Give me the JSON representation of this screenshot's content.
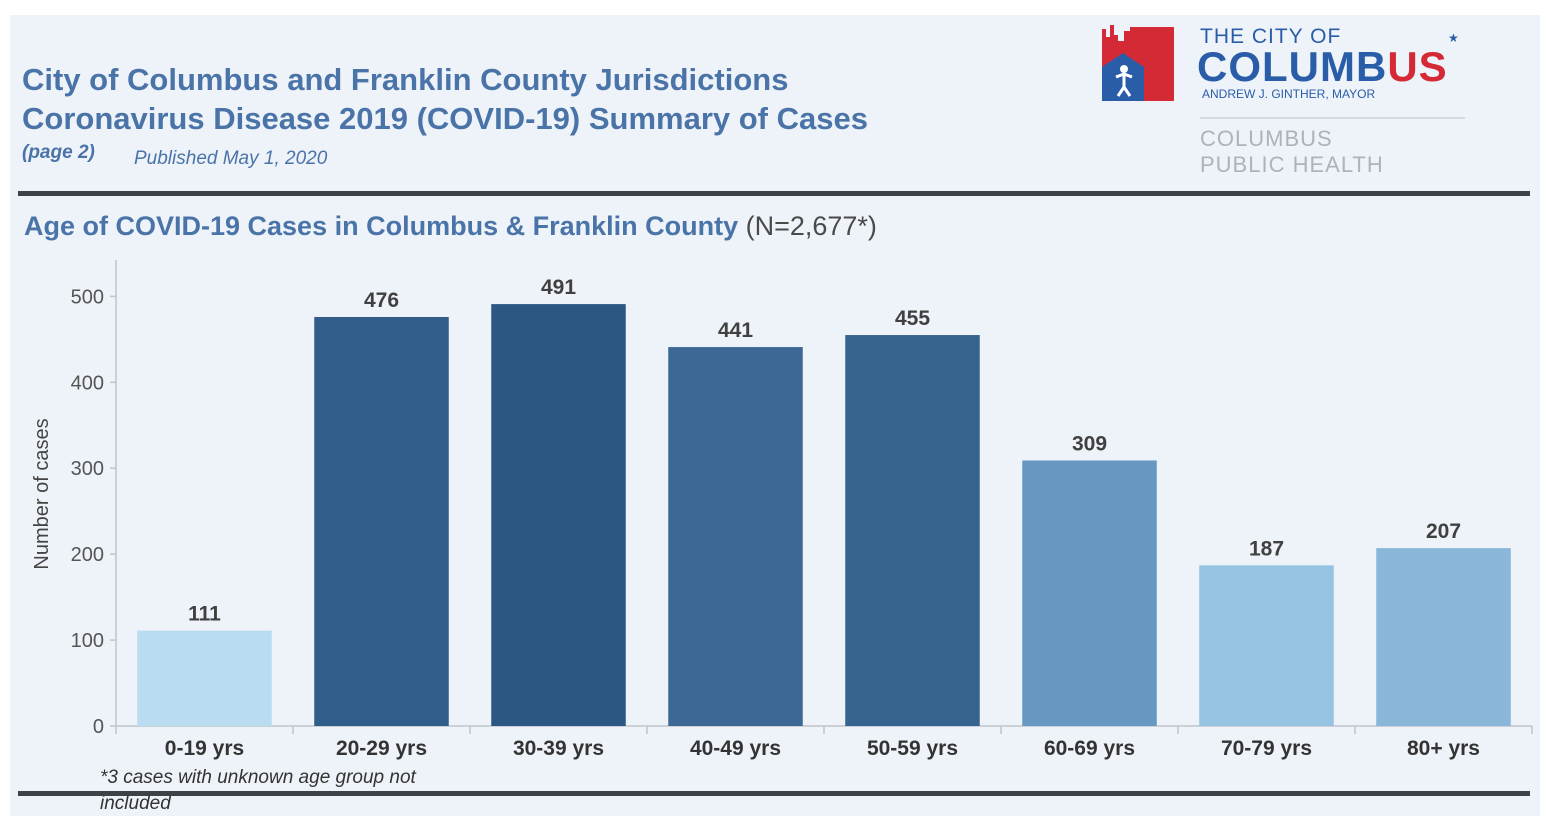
{
  "header": {
    "title_line1": "City of Columbus and Franklin County Jurisdictions",
    "title_line2": "Coronavirus Disease 2019 (COVID-19) Summary of Cases",
    "page_label": "(page 2)",
    "published": "Published May 1, 2020"
  },
  "logo": {
    "the_city_of": "THE CITY OF",
    "columbus_main": "COLUMB",
    "columbus_red": "US",
    "mayor": "ANDREW J. GINTHER, MAYOR",
    "cph_line1": "COLUMBUS",
    "cph_line2": "PUBLIC HEALTH",
    "colors": {
      "blue": "#2a5da8",
      "red": "#d42a35",
      "gray": "#aeb3ba"
    }
  },
  "section": {
    "title": "Age of COVID-19 Cases in Columbus & Franklin County",
    "n_label": " (N=2,677*)"
  },
  "footnote": "*3 cases with unknown age group not included",
  "chart_data": {
    "type": "bar",
    "title": "Age of COVID-19 Cases in Columbus & Franklin County",
    "xlabel": "",
    "ylabel": "Number of cases",
    "categories": [
      "0-19 yrs",
      "20-29 yrs",
      "30-39 yrs",
      "40-49 yrs",
      "50-59 yrs",
      "60-69 yrs",
      "70-79 yrs",
      "80+ yrs"
    ],
    "values": [
      111,
      476,
      491,
      441,
      455,
      309,
      187,
      207
    ],
    "bar_colors": [
      "#b9dcf0",
      "#305d8a",
      "#2c5783",
      "#3d6896",
      "#37648f",
      "#6798c2",
      "#96c3e1",
      "#89b6d9"
    ],
    "yticks": [
      0,
      100,
      200,
      300,
      400,
      500
    ],
    "ylim": [
      0,
      540
    ],
    "grid": false,
    "legend": "none"
  }
}
